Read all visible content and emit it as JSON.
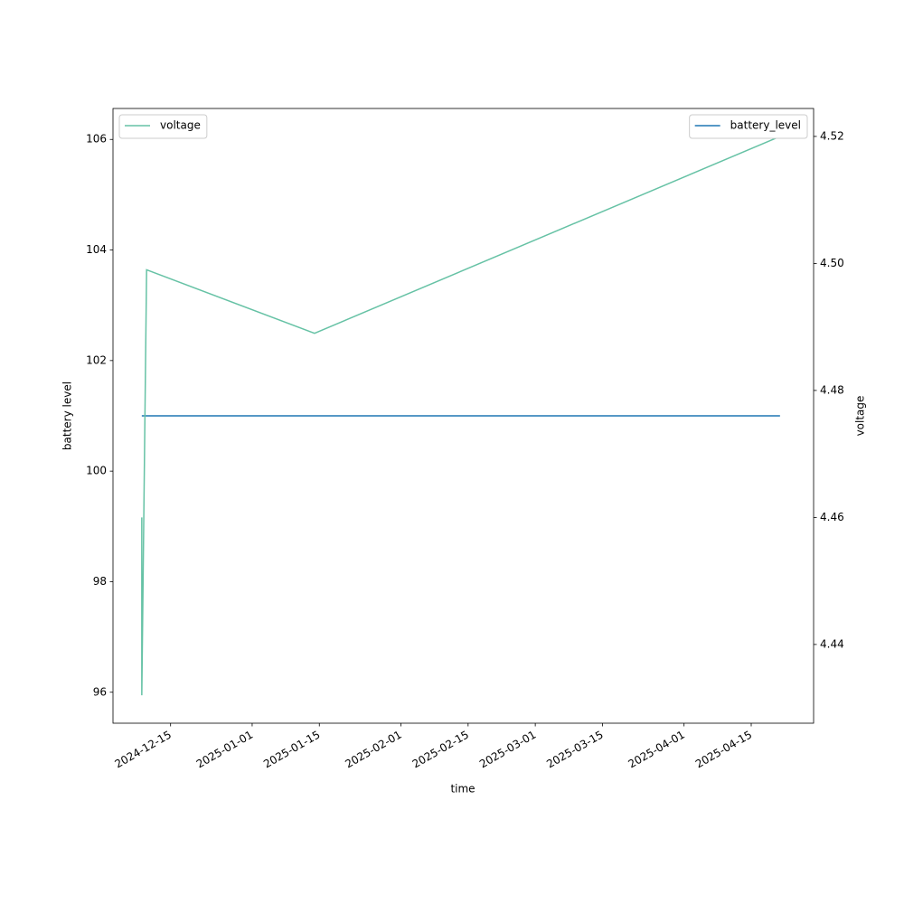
{
  "chart_data": {
    "type": "line",
    "xlabel": "time",
    "ylabel": "battery level",
    "y2label": "voltage",
    "x": [
      "2024-12-09",
      "2024-12-09",
      "2024-12-10",
      "2025-01-14",
      "2025-04-21"
    ],
    "series": [
      {
        "name": "battery_level",
        "color": "#1f77b4",
        "axis": "y",
        "legend_loc": "upper right",
        "values": [
          101,
          101,
          101,
          101,
          101
        ]
      },
      {
        "name": "voltage",
        "color": "#66c2a5",
        "axis": "y2",
        "legend_loc": "upper left",
        "values": [
          4.46,
          4.432,
          4.499,
          4.489,
          4.52
        ]
      }
    ],
    "xlim": [
      "2024-12-03",
      "2025-04-28"
    ],
    "xticks": [
      "2024-12-15",
      "2025-01-01",
      "2025-01-15",
      "2025-02-01",
      "2025-02-15",
      "2025-03-01",
      "2025-03-15",
      "2025-04-01",
      "2025-04-15"
    ],
    "ylim": [
      95.44,
      106.56
    ],
    "yticks": [
      96,
      98,
      100,
      102,
      104,
      106
    ],
    "y2lim": [
      4.4276,
      4.5244
    ],
    "y2ticks": [
      4.44,
      4.46,
      4.48,
      {
        "value": 4.5,
        "label": "4.50"
      },
      4.52
    ]
  }
}
